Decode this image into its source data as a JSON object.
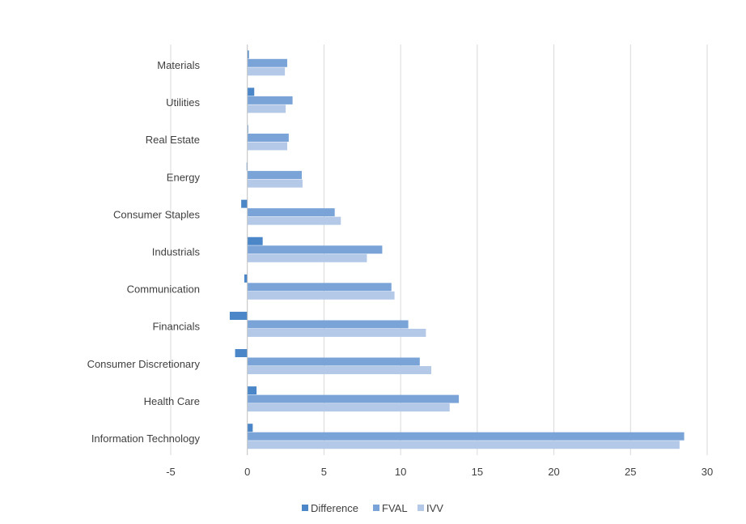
{
  "chart_data": {
    "type": "bar",
    "orientation": "horizontal",
    "categories": [
      "Materials",
      "Utilities",
      "Real Estate",
      "Energy",
      "Consumer Staples",
      "Industrials",
      "Communication",
      "Financials",
      "Consumer Discretionary",
      "Health Care",
      "Information Technology"
    ],
    "series": [
      {
        "name": "Difference",
        "color": "#4a86c8",
        "values": [
          0.1,
          0.45,
          0.05,
          -0.05,
          -0.4,
          1.0,
          -0.2,
          -1.15,
          -0.8,
          0.6,
          0.35
        ]
      },
      {
        "name": "FVAL",
        "color": "#7aa4d8",
        "values": [
          2.6,
          2.95,
          2.7,
          3.55,
          5.7,
          8.8,
          9.4,
          10.5,
          11.25,
          13.8,
          28.5
        ]
      },
      {
        "name": "IVV",
        "color": "#b4c9e8",
        "values": [
          2.45,
          2.5,
          2.6,
          3.6,
          6.1,
          7.8,
          9.6,
          11.65,
          12.0,
          13.2,
          28.2
        ]
      }
    ],
    "xlim": [
      -5,
      30
    ],
    "xticks": [
      -5,
      0,
      5,
      10,
      15,
      20,
      25,
      30
    ],
    "grid": true,
    "legend": "bottom",
    "title": "",
    "xlabel": "",
    "ylabel": ""
  }
}
